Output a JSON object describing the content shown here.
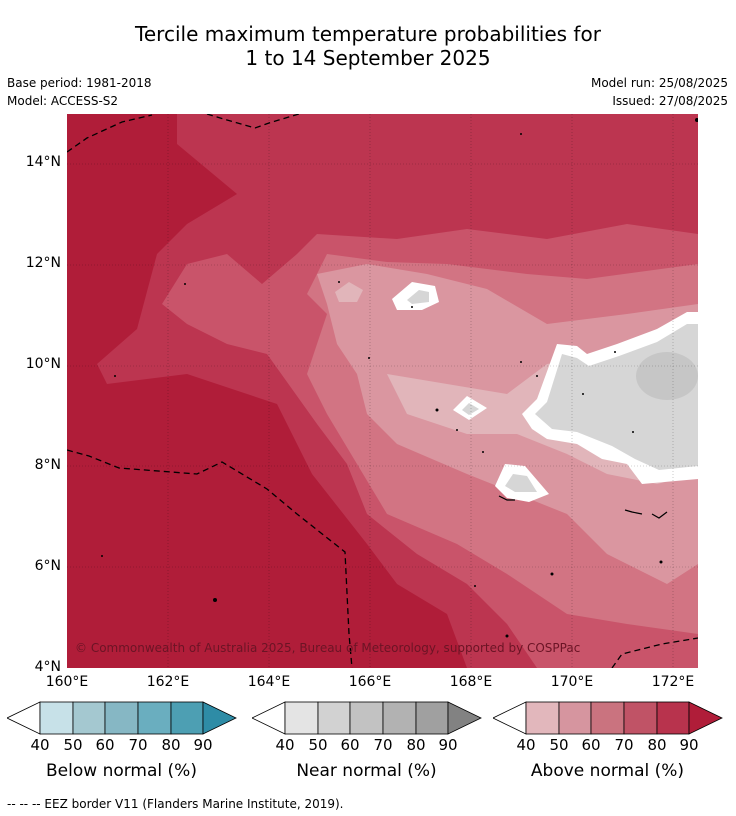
{
  "title": {
    "line1": "Tercile maximum temperature probabilities for",
    "line2": "1 to 14 September 2025"
  },
  "meta": {
    "base_period": "Base period: 1981-2018",
    "model": "Model: ACCESS-S2",
    "model_run": "Model run: 25/08/2025",
    "issued": "Issued: 27/08/2025"
  },
  "map": {
    "lat_labels": [
      "14°N",
      "12°N",
      "10°N",
      "8°N",
      "6°N",
      "4°N"
    ],
    "lon_labels": [
      "160°E",
      "162°E",
      "164°E",
      "166°E",
      "168°E",
      "170°E",
      "172°E"
    ],
    "copyright": "© Commonwealth of Australia 2025, Bureau of Meteorology, supported by COSPPac",
    "colors": {
      "above_90": "#b01d39",
      "above_80": "#bc3550",
      "above_70": "#c9546a",
      "above_60": "#d27483",
      "above_50": "#da96a0",
      "above_40": "#e1b5ba",
      "near_normal": "#d6d6d6",
      "near_normal_dark": "#c6c6c6",
      "normal_band": "#ffffff"
    }
  },
  "legend": {
    "below": {
      "title": "Below normal (%)",
      "ticks": [
        "40",
        "50",
        "60",
        "70",
        "80",
        "90"
      ],
      "colors": [
        "#ffffff",
        "#c7e1e8",
        "#a4c8d0",
        "#86b7c4",
        "#6aaebf",
        "#4d9fb3",
        "#2e8ca6"
      ]
    },
    "near": {
      "title": "Near normal (%)",
      "ticks": [
        "40",
        "50",
        "60",
        "70",
        "80",
        "90"
      ],
      "colors": [
        "#ffffff",
        "#e4e4e4",
        "#d2d2d2",
        "#c2c2c2",
        "#b2b2b2",
        "#a0a0a0",
        "#828282"
      ]
    },
    "above": {
      "title": "Above normal (%)",
      "ticks": [
        "40",
        "50",
        "60",
        "70",
        "80",
        "90"
      ],
      "colors": [
        "#ffffff",
        "#e2b7bc",
        "#d6959f",
        "#ca737f",
        "#c05366",
        "#b8334d",
        "#b01d39"
      ]
    }
  },
  "footnote": "--  --  -- EEZ border V11 (Flanders Marine Institute, 2019)."
}
